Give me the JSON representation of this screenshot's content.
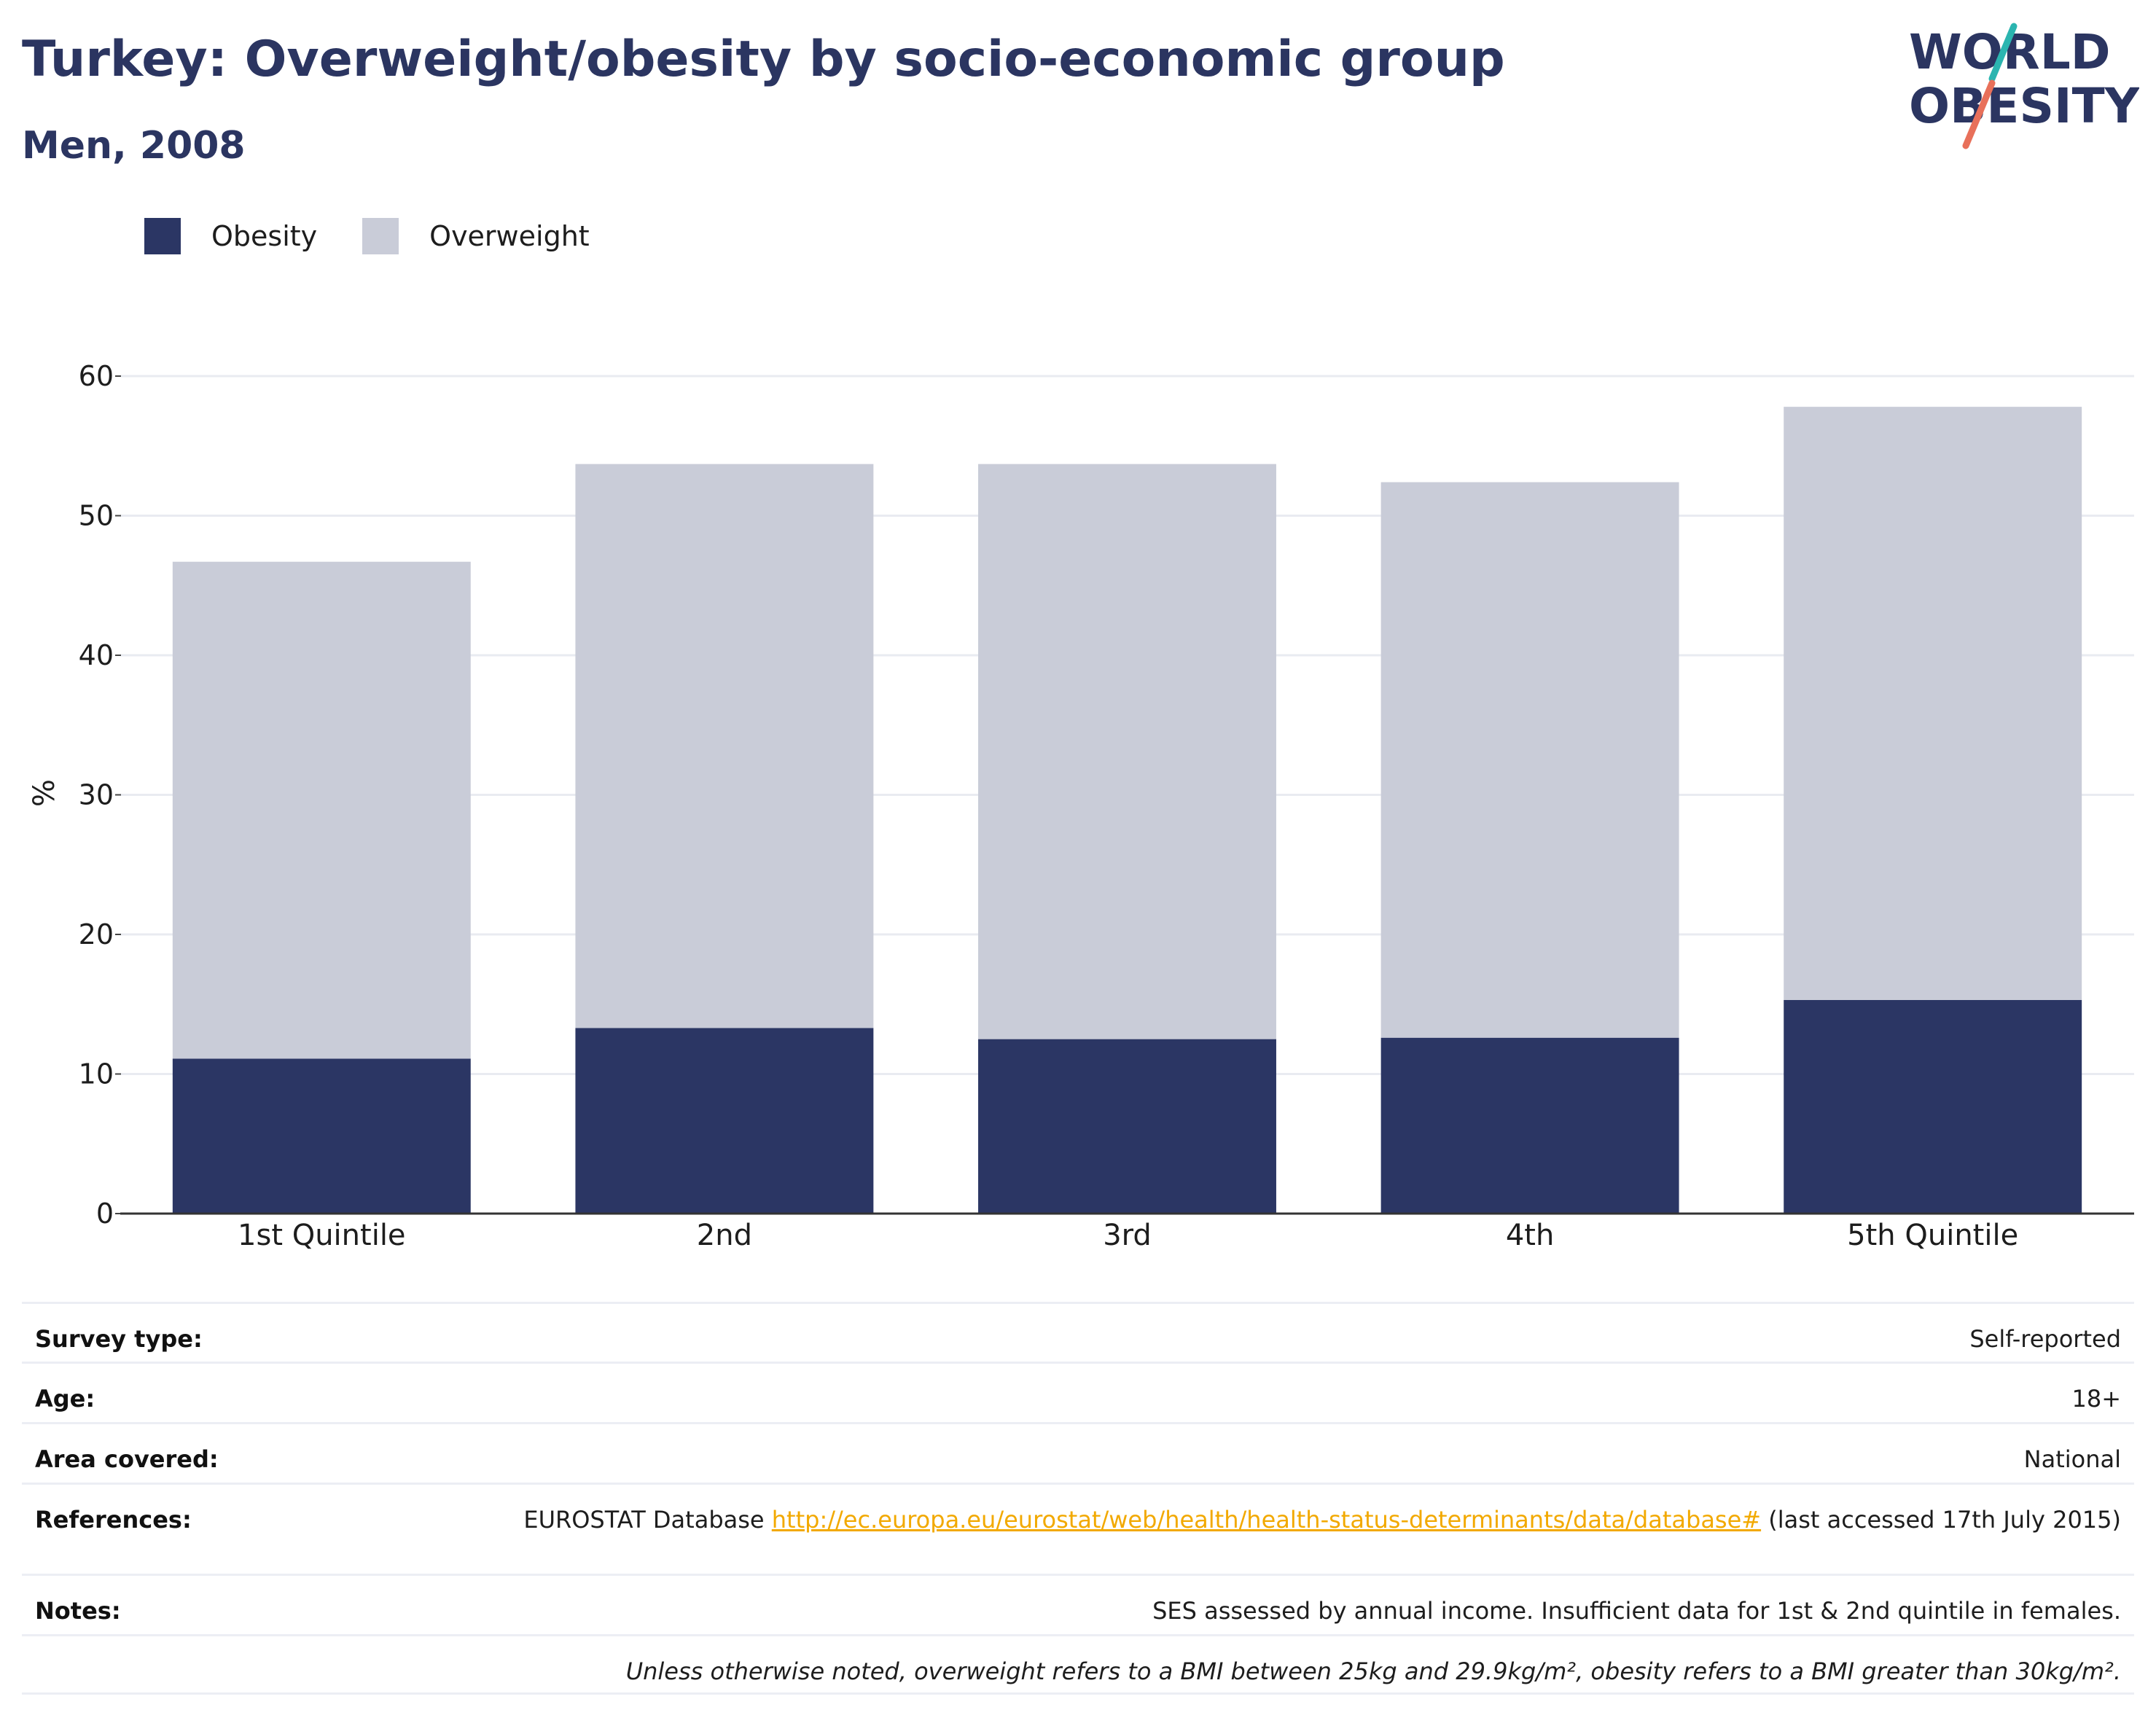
{
  "header": {
    "title": "Turkey: Overweight/obesity by socio-economic group",
    "subtitle": "Men, 2008"
  },
  "logo": {
    "line1": "WORLD",
    "line2": "OBESITY",
    "accent_colors": [
      "#2bb5b0",
      "#e8705a"
    ]
  },
  "legend": {
    "items": [
      {
        "label": "Obesity",
        "color": "#2b3664"
      },
      {
        "label": "Overweight",
        "color": "#c9ccd8"
      }
    ]
  },
  "chart_data": {
    "type": "bar",
    "stacked": true,
    "categories": [
      "1st Quintile",
      "2nd",
      "3rd",
      "4th",
      "5th Quintile"
    ],
    "series": [
      {
        "name": "Obesity",
        "color": "#2b3664",
        "values": [
          11.1,
          13.3,
          12.5,
          12.6,
          15.3
        ]
      },
      {
        "name": "Overweight",
        "color": "#c9ccd8",
        "values": [
          35.6,
          40.4,
          41.2,
          39.8,
          42.5
        ]
      }
    ],
    "ylabel": "%",
    "ylim": [
      0,
      60
    ],
    "yticks": [
      0,
      10,
      20,
      30,
      40,
      50,
      60
    ],
    "grid": true,
    "legend_position": "top-left"
  },
  "info": {
    "survey_type": {
      "label": "Survey type:",
      "value": "Self-reported"
    },
    "age": {
      "label": "Age:",
      "value": "18+"
    },
    "area": {
      "label": "Area covered:",
      "value": "National"
    },
    "references": {
      "label": "References:",
      "prefix": "EUROSTAT Database ",
      "link": "http://ec.europa.eu/eurostat/web/health/health-status-determinants/data/database#",
      "suffix": " (last accessed 17th July 2015)"
    },
    "notes": {
      "label": "Notes:",
      "value": "SES assessed by annual income. Insufficient data for 1st & 2nd quintile in females."
    },
    "footnote": "Unless otherwise noted, overweight refers to a BMI between 25kg and 29.9kg/m², obesity refers to a BMI greater than 30kg/m²."
  }
}
